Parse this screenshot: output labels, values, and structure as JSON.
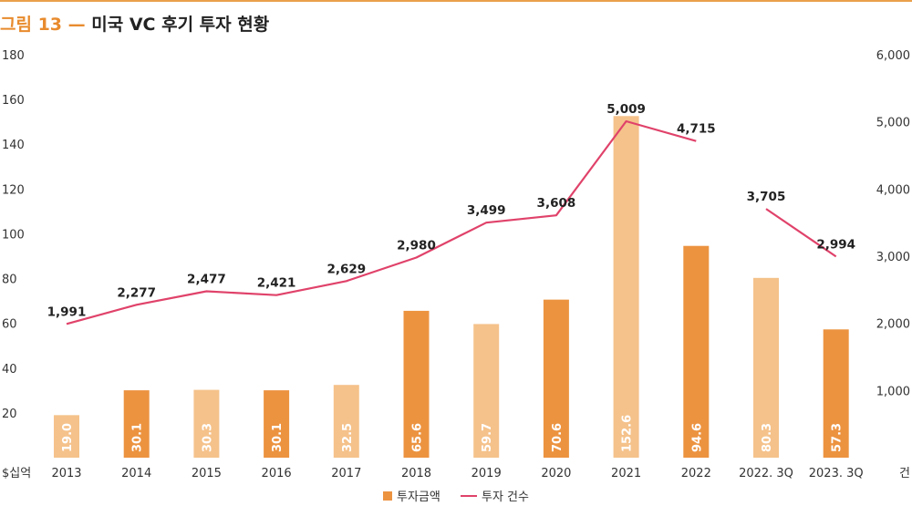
{
  "header": {
    "figure_label": "그림 13",
    "separator": "—",
    "title": "미국 VC 후기 투자 현황"
  },
  "colors": {
    "bar_dark": "#ec9340",
    "bar_light": "#f5c28b",
    "line": "#e0426a",
    "bar_label": "#ffffff",
    "accent": "#e88b2e"
  },
  "chart_data": {
    "type": "bar",
    "categories": [
      "2013",
      "2014",
      "2015",
      "2016",
      "2017",
      "2018",
      "2019",
      "2020",
      "2021",
      "2022",
      "2022. 3Q",
      "2023. 3Q"
    ],
    "series": [
      {
        "name": "투자금액",
        "kind": "bar",
        "axis": "left",
        "values": [
          19.0,
          30.1,
          30.3,
          30.1,
          32.5,
          65.6,
          59.7,
          70.6,
          152.6,
          94.6,
          80.3,
          57.3
        ],
        "labels": [
          "19.0",
          "30.1",
          "30.3",
          "30.1",
          "32.5",
          "65.6",
          "59.7",
          "70.6",
          "152.6",
          "94.6",
          "80.3",
          "57.3"
        ],
        "shade": [
          "light",
          "dark",
          "light",
          "dark",
          "light",
          "dark",
          "light",
          "dark",
          "light",
          "dark",
          "light",
          "dark"
        ]
      },
      {
        "name": "투자 건수",
        "kind": "line",
        "axis": "right",
        "values": [
          1991,
          2277,
          2477,
          2421,
          2629,
          2980,
          3499,
          3608,
          5009,
          4715,
          3705,
          2994
        ],
        "labels": [
          "1,991",
          "2,277",
          "2,477",
          "2,421",
          "2,629",
          "2,980",
          "3,499",
          "3,608",
          "5,009",
          "4,715",
          "3,705",
          "2,994"
        ],
        "segments": [
          [
            0,
            9
          ],
          [
            10,
            11
          ]
        ]
      }
    ],
    "left_axis": {
      "unit_label": "$십억",
      "ylim": [
        0,
        180
      ],
      "ticks": [
        20,
        40,
        60,
        80,
        100,
        120,
        140,
        160,
        180
      ],
      "tick_labels": [
        "20",
        "40",
        "60",
        "80",
        "100",
        "120",
        "140",
        "160",
        "180"
      ]
    },
    "right_axis": {
      "unit_label": "건",
      "ylim": [
        0,
        6000
      ],
      "ticks": [
        1000,
        2000,
        3000,
        4000,
        5000,
        6000
      ],
      "tick_labels": [
        "1,000",
        "2,000",
        "3,000",
        "4,000",
        "5,000",
        "6,000"
      ]
    },
    "grid": false,
    "legend_position": "bottom-center"
  },
  "legend": {
    "bar_label": "투자금액",
    "line_label": "투자 건수"
  }
}
